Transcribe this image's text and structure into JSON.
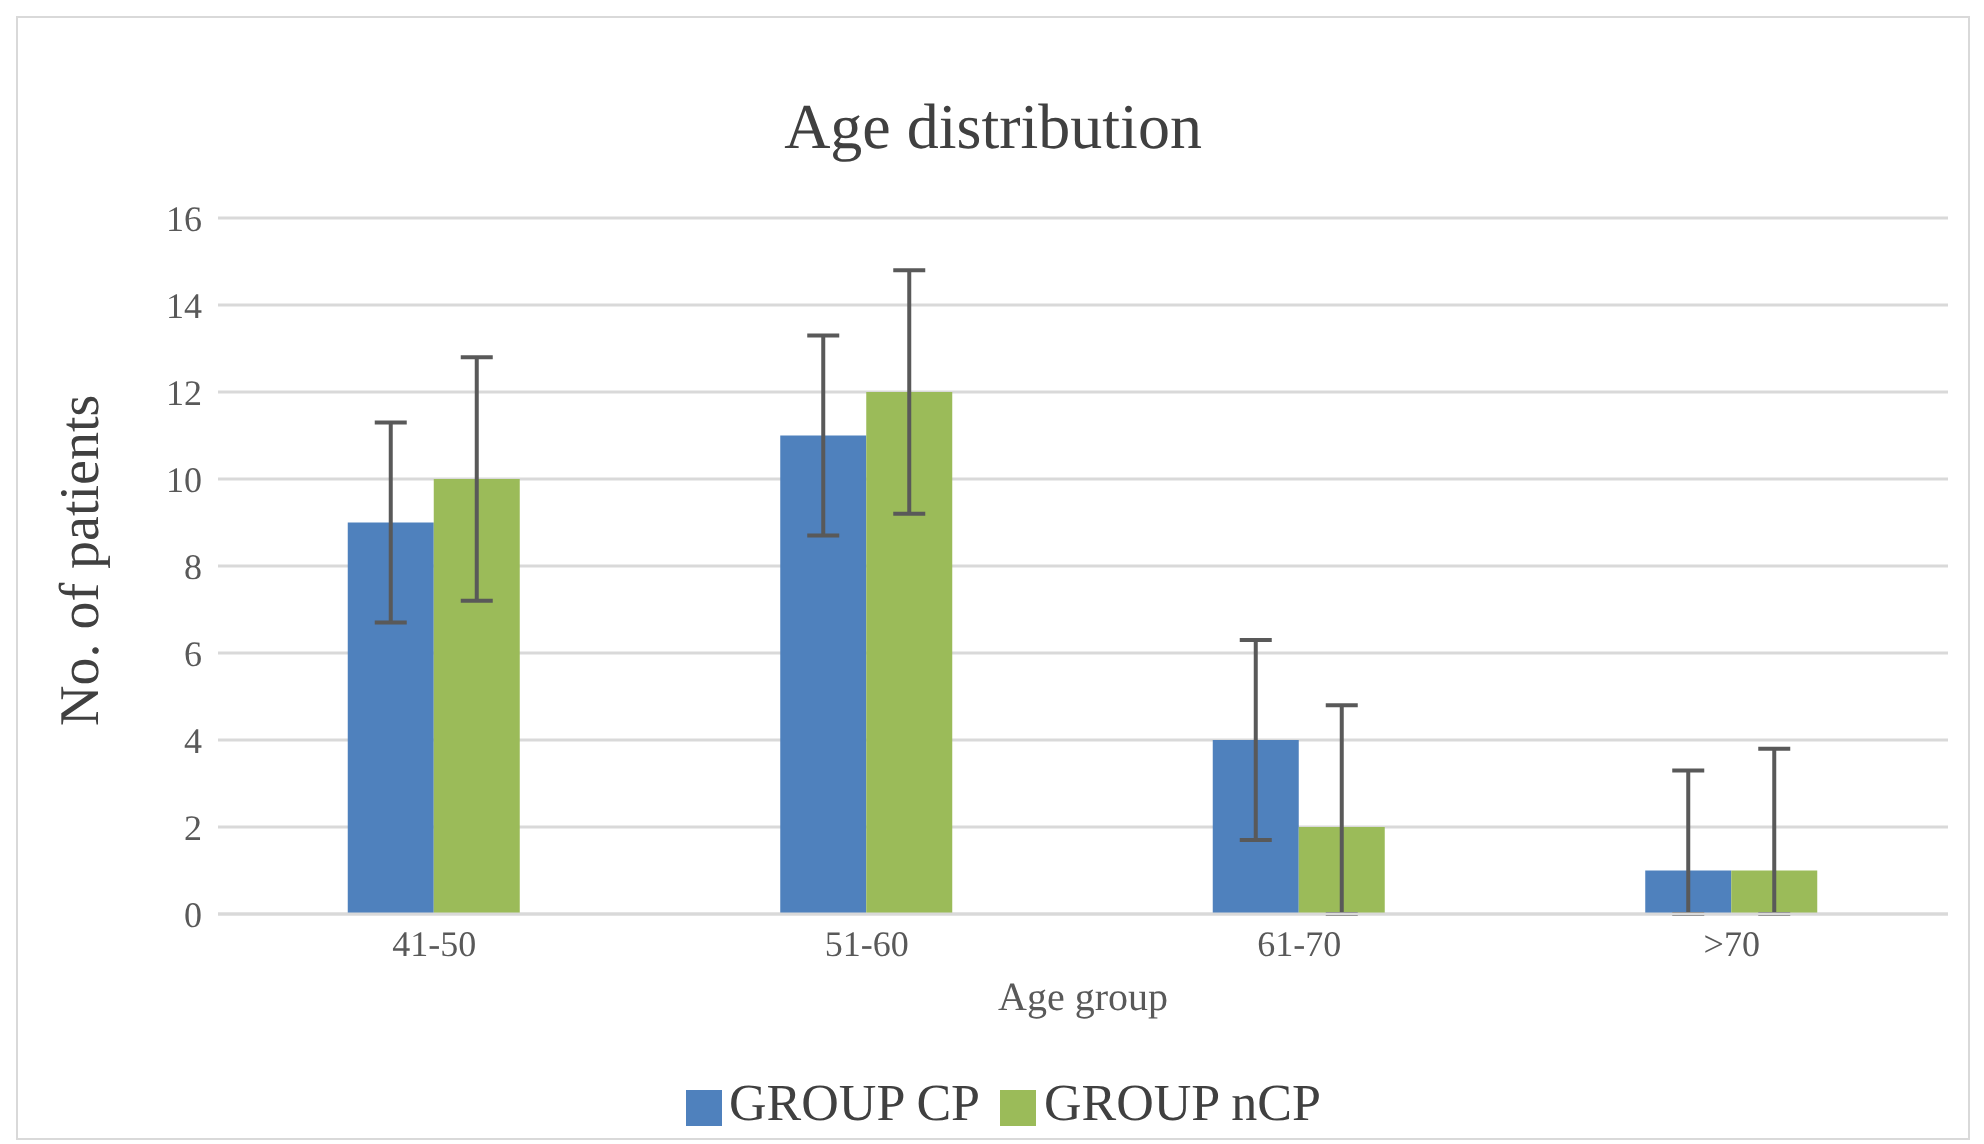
{
  "chart_data": {
    "type": "bar",
    "title": "Age distribution",
    "xlabel": "Age group",
    "ylabel": "No. of patients",
    "categories": [
      "41-50",
      "51-60",
      "61-70",
      ">70"
    ],
    "series": [
      {
        "name": "GROUP CP",
        "color": "#4f81bd",
        "values": [
          9,
          11,
          4,
          1
        ],
        "errors": [
          [
            6.7,
            11.3
          ],
          [
            8.7,
            13.3
          ],
          [
            1.7,
            6.3
          ],
          [
            0,
            3.3
          ]
        ]
      },
      {
        "name": "GROUP nCP",
        "color": "#9bbb59",
        "values": [
          10,
          12,
          2,
          1
        ],
        "errors": [
          [
            7.2,
            12.8
          ],
          [
            9.2,
            14.8
          ],
          [
            0,
            4.8
          ],
          [
            0,
            3.8
          ]
        ]
      }
    ],
    "ylim": [
      0,
      16
    ],
    "yticks": [
      0,
      2,
      4,
      6,
      8,
      10,
      12,
      14,
      16
    ],
    "grid": "y",
    "legend": "bottom"
  }
}
